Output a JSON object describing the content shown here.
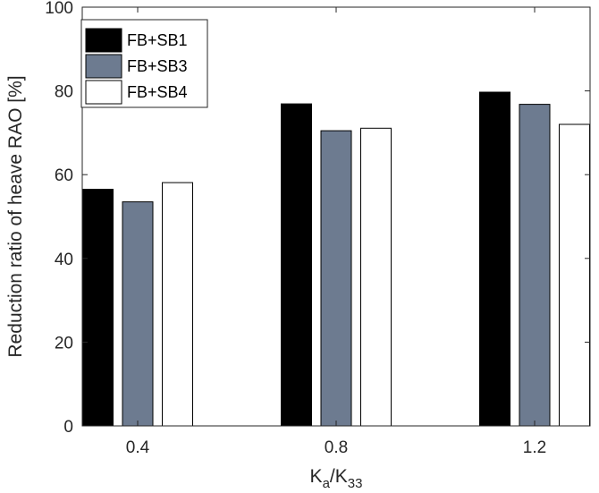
{
  "chart_data": {
    "type": "bar",
    "title": "",
    "xlabel": "K_a/K_33",
    "ylabel": "Reduction ratio of heave RAO [%]",
    "categories": [
      "0.4",
      "0.8",
      "1.2"
    ],
    "ylim": [
      0,
      100
    ],
    "yticks": [
      "0",
      "20",
      "40",
      "60",
      "80",
      "100"
    ],
    "grid": false,
    "legend_position": "top-left",
    "series": [
      {
        "name": "FB+SB1",
        "color": "#000000",
        "values": [
          56.5,
          76.9,
          79.7
        ]
      },
      {
        "name": "FB+SB3",
        "color": "#6d7b90",
        "values": [
          53.5,
          70.5,
          76.8
        ]
      },
      {
        "name": "FB+SB4",
        "color": "#ffffff",
        "values": [
          58.1,
          71.1,
          72.0
        ]
      }
    ]
  },
  "xlabel_parts": {
    "main": "K",
    "sub1": "a",
    "slash": "/K",
    "sub2": "33"
  }
}
